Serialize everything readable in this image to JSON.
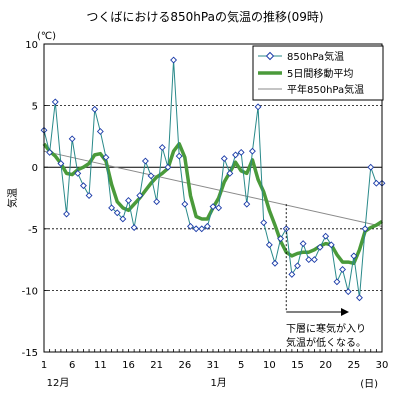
{
  "chart_data": {
    "type": "line",
    "title": "つくばにおける850hPaの気温の推移(09時)",
    "ylabel": "気温",
    "y_unit": "(℃)",
    "x_unit": "(日)",
    "ylim": [
      -15,
      10
    ],
    "yticks": [
      10,
      5,
      0,
      -5,
      -10,
      -15
    ],
    "xtick_labels": [
      "1",
      "6",
      "11",
      "16",
      "21",
      "26",
      "31",
      "5",
      "10",
      "15",
      "20",
      "25",
      "30"
    ],
    "month_labels": [
      "12月",
      "1月"
    ],
    "grid": "horizontal dashed at 5, -5, -10; solid at 0",
    "legend_position": "top-right",
    "legend": [
      "850hPa気温",
      "5日間移動平均",
      "平年850hPa気温"
    ],
    "annotation": [
      "下層に寒気が入り",
      "気温が低くなる。"
    ],
    "series": [
      {
        "name": "850hPa気温",
        "color": "#2a8a8a",
        "marker": "diamond",
        "x": [
          "12-01",
          "12-02",
          "12-03",
          "12-04",
          "12-05",
          "12-06",
          "12-07",
          "12-08",
          "12-09",
          "12-10",
          "12-11",
          "12-12",
          "12-13",
          "12-14",
          "12-15",
          "12-16",
          "12-17",
          "12-18",
          "12-19",
          "12-20",
          "12-21",
          "12-22",
          "12-23",
          "12-24",
          "12-25",
          "12-26",
          "12-27",
          "12-28",
          "12-29",
          "12-30",
          "12-31",
          "01-01",
          "01-02",
          "01-03",
          "01-04",
          "01-05",
          "01-06",
          "01-07",
          "01-08",
          "01-09",
          "01-10",
          "01-11",
          "01-12",
          "01-13",
          "01-14",
          "01-15",
          "01-16",
          "01-17",
          "01-18",
          "01-19",
          "01-20",
          "01-21",
          "01-22",
          "01-23",
          "01-24",
          "01-25",
          "01-26",
          "01-27",
          "01-28",
          "01-29",
          "01-30"
        ],
        "values": [
          3.0,
          1.2,
          5.3,
          0.3,
          -3.8,
          2.3,
          -0.5,
          -1.5,
          -2.3,
          4.7,
          2.9,
          0.8,
          -3.3,
          -3.7,
          -4.2,
          -2.7,
          -4.9,
          -2.3,
          0.5,
          -0.7,
          -2.8,
          1.6,
          0.0,
          8.7,
          0.9,
          -3.0,
          -4.8,
          -5.0,
          -5.0,
          -4.8,
          -3.2,
          -3.3,
          0.7,
          -0.5,
          1.0,
          1.2,
          -3.0,
          1.3,
          4.9,
          -4.5,
          -6.3,
          -7.8,
          -5.8,
          -5.0,
          -8.7,
          -8.0,
          -6.2,
          -7.5,
          -7.5,
          -6.5,
          -5.6,
          -6.3,
          -9.3,
          -8.3,
          -10.1,
          -7.2,
          -10.6,
          -5.0,
          0.0,
          -1.3,
          -1.3
        ]
      },
      {
        "name": "5日間移動平均",
        "color": "#4a9a3a",
        "x": [
          "12-01",
          "12-02",
          "12-03",
          "12-04",
          "12-05",
          "12-06",
          "12-07",
          "12-08",
          "12-09",
          "12-10",
          "12-11",
          "12-12",
          "12-13",
          "12-14",
          "12-15",
          "12-16",
          "12-17",
          "12-18",
          "12-19",
          "12-20",
          "12-21",
          "12-22",
          "12-23",
          "12-24",
          "12-25",
          "12-26",
          "12-27",
          "12-28",
          "12-29",
          "12-30",
          "12-31",
          "01-01",
          "01-02",
          "01-03",
          "01-04",
          "01-05",
          "01-06",
          "01-07",
          "01-08",
          "01-09",
          "01-10",
          "01-11",
          "01-12",
          "01-13",
          "01-14",
          "01-15",
          "01-16",
          "01-17",
          "01-18",
          "01-19",
          "01-20",
          "01-21",
          "01-22",
          "01-23",
          "01-24",
          "01-25",
          "01-26",
          "01-27",
          "01-28",
          "01-29",
          "01-30"
        ],
        "values": [
          1.9,
          1.3,
          0.9,
          0.3,
          -0.5,
          -0.6,
          -0.2,
          0.0,
          0.3,
          1.0,
          1.1,
          0.5,
          -1.4,
          -2.8,
          -3.3,
          -3.5,
          -3.0,
          -2.5,
          -1.9,
          -1.3,
          -0.8,
          -0.5,
          -0.1,
          1.3,
          1.9,
          0.8,
          -2.3,
          -4.0,
          -4.2,
          -4.2,
          -3.3,
          -2.5,
          -1.2,
          -0.4,
          0.4,
          -0.3,
          -0.5,
          0.6,
          -1.0,
          -2.0,
          -3.5,
          -4.7,
          -6.0,
          -6.9,
          -7.2,
          -7.0,
          -6.9,
          -6.9,
          -6.7,
          -6.4,
          -6.2,
          -6.3,
          -7.1,
          -7.7,
          -7.7,
          -7.8,
          -6.7,
          -5.2,
          -4.9,
          -4.7,
          -4.4
        ]
      },
      {
        "name": "平年850hPa気温",
        "color": "#8a8a8a",
        "x": [
          "12-01",
          "01-30"
        ],
        "values": [
          1.3,
          -4.8
        ]
      }
    ]
  }
}
